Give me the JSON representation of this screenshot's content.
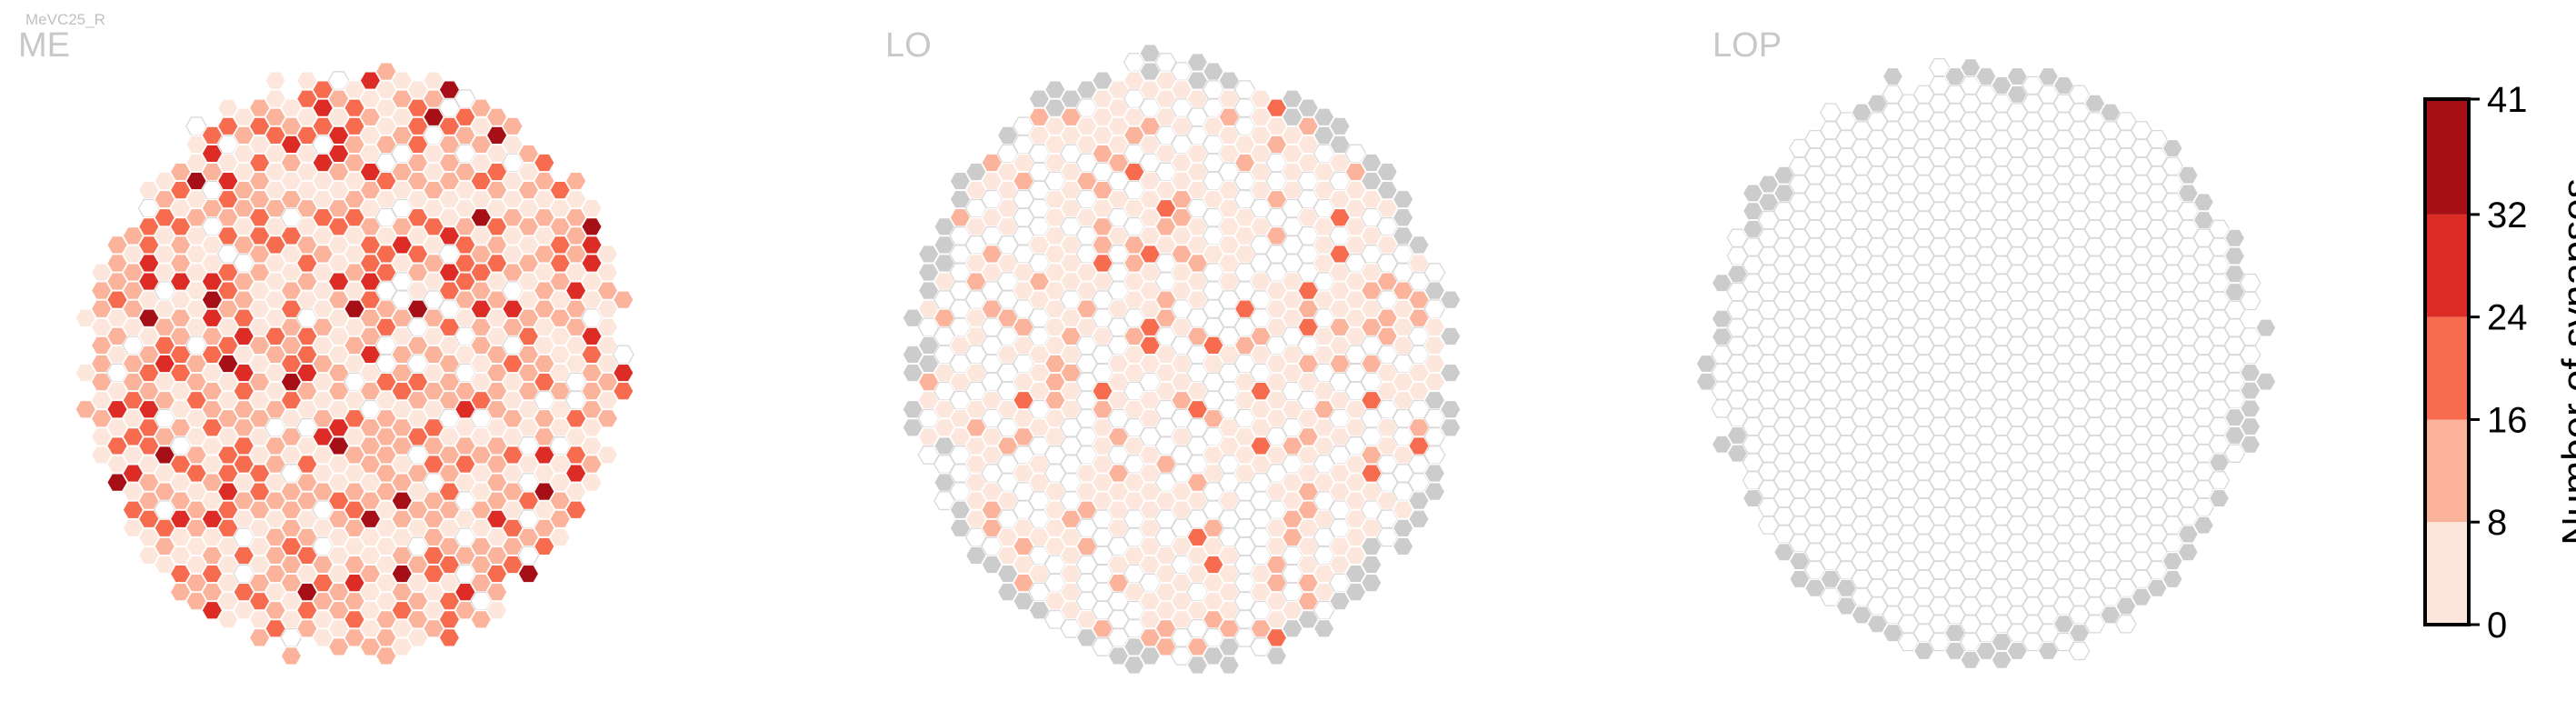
{
  "cell_type": "MeVC25_R",
  "chart_data": [
    {
      "type": "heatmap",
      "panel": "ME",
      "title": "ME",
      "description_of_values": "hexagonal column map; synapse count per column",
      "radius_columns": 16,
      "column_aspect": 0.92,
      "tilt_deg": -9,
      "value_bins": [
        0,
        8,
        16,
        24,
        32,
        41
      ],
      "approx_bin_fractions": {
        "empty": 0.08,
        "0-8": 0.37,
        "8-16": 0.3,
        "16-24": 0.18,
        "24-32": 0.05,
        "32-41": 0.02
      },
      "missing_columns": "none",
      "seed": 11
    },
    {
      "type": "heatmap",
      "panel": "LO",
      "title": "LO",
      "description_of_values": "hexagonal column map; synapse count per column",
      "radius_columns": 16,
      "column_aspect": 0.9,
      "tilt_deg": 8,
      "value_bins": [
        0,
        8,
        16,
        24,
        32,
        41
      ],
      "approx_bin_fractions": {
        "empty": 0.36,
        "0-8": 0.46,
        "8-16": 0.12,
        "16-24": 0.04,
        "24-32": 0.0,
        "32-41": 0.0
      },
      "missing_columns": "grey hexagons along outer rim",
      "seed": 23
    },
    {
      "type": "heatmap",
      "panel": "LOP",
      "title": "LOP",
      "description_of_values": "hexagonal column map; synapse count per column",
      "radius_columns": 16,
      "column_aspect": 0.92,
      "tilt_deg": 0,
      "value_bins": [
        0,
        8,
        16,
        24,
        32,
        41
      ],
      "approx_bin_fractions": {
        "empty": 1.0,
        "0-8": 0.0,
        "8-16": 0.0,
        "16-24": 0.0,
        "24-32": 0.0,
        "32-41": 0.0
      },
      "missing_columns": "grey hexagons along outer rim",
      "seed": 37
    }
  ],
  "colorbar": {
    "label": "Number of synapses",
    "ticks": [
      "0",
      "8",
      "16",
      "24",
      "32",
      "41"
    ],
    "tick_values": [
      0,
      8,
      16,
      24,
      32,
      41
    ],
    "bin_colors": [
      "#fde6dc",
      "#fbb39b",
      "#f76b4f",
      "#dd2c25",
      "#a50f15"
    ]
  },
  "colors": {
    "empty_fill": "#ffffff",
    "empty_stroke": "#d9d9d9",
    "missing_fill": "#cccccc",
    "hex_stroke": "#ffffff"
  }
}
